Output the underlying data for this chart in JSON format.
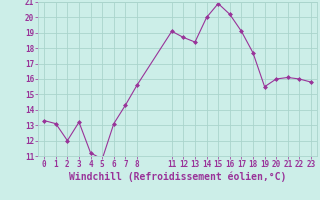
{
  "x": [
    0,
    1,
    2,
    3,
    4,
    5,
    6,
    7,
    8,
    11,
    12,
    13,
    14,
    15,
    16,
    17,
    18,
    19,
    20,
    21,
    22,
    23
  ],
  "y": [
    13.3,
    13.1,
    12.0,
    13.2,
    11.2,
    10.8,
    13.1,
    14.3,
    15.6,
    19.1,
    18.7,
    18.4,
    20.0,
    20.9,
    20.2,
    19.1,
    17.7,
    15.5,
    16.0,
    16.1,
    16.0,
    15.8
  ],
  "line_color": "#993399",
  "marker": "D",
  "marker_size": 2.0,
  "bg_color": "#cceee8",
  "grid_color": "#aad4cc",
  "xlabel": "Windchill (Refroidissement éolien,°C)",
  "ylim": [
    11,
    21
  ],
  "xlim": [
    -0.5,
    23.5
  ],
  "yticks": [
    11,
    12,
    13,
    14,
    15,
    16,
    17,
    18,
    19,
    20,
    21
  ],
  "xticks": [
    0,
    1,
    2,
    3,
    4,
    5,
    6,
    7,
    8,
    11,
    12,
    13,
    14,
    15,
    16,
    17,
    18,
    19,
    20,
    21,
    22,
    23
  ],
  "tick_labelsize": 5.5,
  "xlabel_fontsize": 7.0,
  "label_color": "#993399",
  "linewidth": 0.8
}
